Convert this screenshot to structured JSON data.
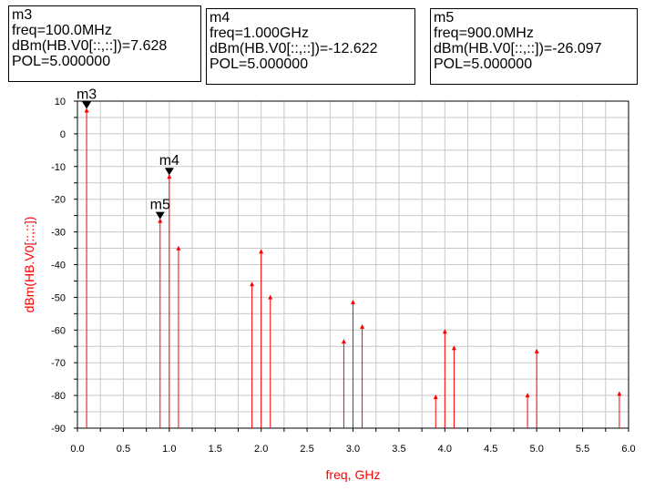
{
  "markers_panel": [
    {
      "id": "m3",
      "lines": [
        "m3",
        "freq=100.0MHz",
        "dBm(HB.V0[::,::])=7.628",
        "POL=5.000000"
      ]
    },
    {
      "id": "m4",
      "lines": [
        "m4",
        "freq=1.000GHz",
        "dBm(HB.V0[::,::])=-12.622",
        "POL=5.000000"
      ]
    },
    {
      "id": "m5",
      "lines": [
        "m5",
        "freq=900.0MHz",
        "dBm(HB.V0[::,::])=-26.097",
        "POL=5.000000"
      ]
    }
  ],
  "chart_data": {
    "type": "spectrum",
    "xlabel": "freq, GHz",
    "ylabel": "dBm(HB.V0[::,::])",
    "xlim": [
      0.0,
      6.0
    ],
    "ylim": [
      -90,
      10
    ],
    "xticks": [
      "0.0",
      "0.5",
      "1.0",
      "1.5",
      "2.0",
      "2.5",
      "3.0",
      "3.5",
      "4.0",
      "4.5",
      "5.0",
      "5.5",
      "6.0"
    ],
    "yticks": [
      "10",
      "0",
      "-10",
      "-20",
      "-30",
      "-40",
      "-50",
      "-60",
      "-70",
      "-80",
      "-90"
    ],
    "grid": true,
    "series": [
      {
        "color": "#ff0000",
        "x": [
          0.1,
          0.9,
          1.0,
          1.1,
          1.9,
          2.0,
          2.1,
          2.9,
          3.0,
          3.1,
          3.9,
          4.0,
          4.1,
          4.9,
          5.0,
          5.9
        ],
        "y": [
          7.628,
          -26.097,
          -12.622,
          -34.5,
          -45.5,
          -35.5,
          -49.5,
          -63,
          -51,
          -58.5,
          -80,
          -60,
          -65,
          -79.5,
          -66,
          -79
        ]
      }
    ],
    "markers": [
      {
        "label": "m3",
        "x": 0.1,
        "y": 7.628
      },
      {
        "label": "m4",
        "x": 1.0,
        "y": -12.622
      },
      {
        "label": "m5",
        "x": 0.9,
        "y": -26.097
      }
    ]
  }
}
